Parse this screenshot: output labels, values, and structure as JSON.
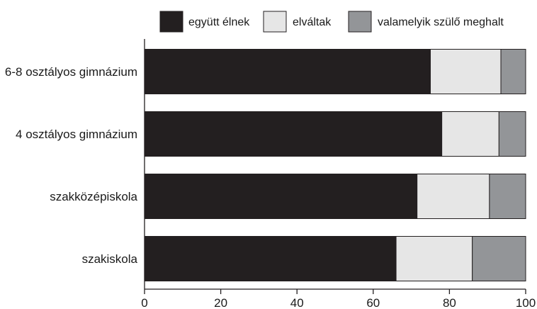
{
  "chart_data": {
    "type": "bar",
    "orientation": "horizontal",
    "stacked": true,
    "title": "",
    "xlabel": "",
    "ylabel": "",
    "categories": [
      "6-8 osztályos gimnázium",
      "4 osztályos gimnázium",
      "szakközépiskola",
      "szakiskola"
    ],
    "series": [
      {
        "name": "együtt élnek",
        "color": "#231f20",
        "values": [
          75,
          78,
          71.5,
          66
        ]
      },
      {
        "name": "elváltak",
        "color": "#e6e6e6",
        "values": [
          18.5,
          15,
          19,
          20
        ]
      },
      {
        "name": "valamelyik szülő meghalt",
        "color": "#939598",
        "values": [
          6.5,
          7,
          9.5,
          14
        ]
      }
    ],
    "xlim": [
      0,
      100
    ],
    "xticks": [
      0,
      20,
      40,
      60,
      80,
      100
    ],
    "grid": false,
    "legend_position": "top"
  }
}
